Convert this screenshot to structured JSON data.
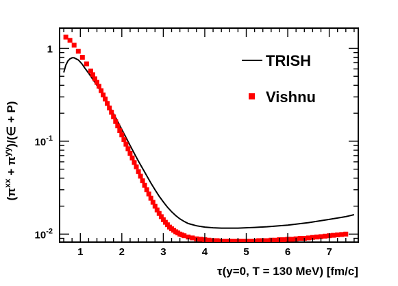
{
  "chart_data": {
    "type": "line",
    "title": "",
    "xlabel": "τ(y=0, T = 130 MeV) [fm/c]",
    "ylabel": "(π^{xx} + π^{yy})/(∈ + P)",
    "ylabel_parts": {
      "open": "(π",
      "sup1": "xx",
      "mid": " + π",
      "sup2": "yy",
      "close": ")/(∈ + P)"
    },
    "xlim": [
      0.5,
      7.7
    ],
    "ylim": [
      0.0082,
      1.65
    ],
    "yscale": "log",
    "grid": false,
    "legend_position": "top-right",
    "x_ticks": [
      {
        "value": 1,
        "label": "1"
      },
      {
        "value": 2,
        "label": "2"
      },
      {
        "value": 3,
        "label": "3"
      },
      {
        "value": 4,
        "label": "4"
      },
      {
        "value": 5,
        "label": "5"
      },
      {
        "value": 6,
        "label": "6"
      },
      {
        "value": 7,
        "label": "7"
      }
    ],
    "y_ticks": [
      {
        "value": 1,
        "base": "1",
        "exp": ""
      },
      {
        "value": 0.1,
        "base": "10",
        "exp": "-1"
      },
      {
        "value": 0.01,
        "base": "10",
        "exp": "-2"
      }
    ],
    "series": [
      {
        "name": "TRISH",
        "style": "line",
        "color": "#000000",
        "x": [
          0.6,
          0.65,
          0.7,
          0.75,
          0.8,
          0.85,
          0.9,
          0.95,
          1.0,
          1.05,
          1.1,
          1.2,
          1.3,
          1.4,
          1.5,
          1.6,
          1.7,
          1.8,
          1.9,
          2.0,
          2.1,
          2.2,
          2.3,
          2.4,
          2.5,
          2.6,
          2.7,
          2.8,
          2.9,
          3.0,
          3.1,
          3.2,
          3.3,
          3.4,
          3.5,
          3.6,
          3.8,
          4.0,
          4.2,
          4.4,
          4.6,
          4.8,
          5.0,
          5.2,
          5.5,
          6.0,
          6.5,
          7.0,
          7.4,
          7.6
        ],
        "y": [
          0.55,
          0.66,
          0.73,
          0.77,
          0.79,
          0.79,
          0.77,
          0.75,
          0.71,
          0.67,
          0.62,
          0.54,
          0.465,
          0.4,
          0.34,
          0.285,
          0.238,
          0.198,
          0.163,
          0.134,
          0.11,
          0.09,
          0.074,
          0.061,
          0.051,
          0.0425,
          0.0355,
          0.03,
          0.0256,
          0.0222,
          0.0195,
          0.0174,
          0.0158,
          0.0146,
          0.0137,
          0.013,
          0.0123,
          0.0119,
          0.0117,
          0.0116,
          0.0116,
          0.0116,
          0.0117,
          0.0118,
          0.012,
          0.0125,
          0.0133,
          0.0144,
          0.0154,
          0.0162
        ]
      },
      {
        "name": "Vishnu",
        "style": "markers",
        "color": "#ff0000",
        "x": [
          0.65,
          0.75,
          0.85,
          0.95,
          1.05,
          1.15,
          1.25,
          1.3,
          1.35,
          1.4,
          1.45,
          1.5,
          1.55,
          1.6,
          1.65,
          1.7,
          1.75,
          1.8,
          1.85,
          1.9,
          1.95,
          2.0,
          2.05,
          2.1,
          2.15,
          2.2,
          2.25,
          2.3,
          2.35,
          2.4,
          2.45,
          2.5,
          2.55,
          2.6,
          2.65,
          2.7,
          2.75,
          2.8,
          2.85,
          2.9,
          2.95,
          3.0,
          3.05,
          3.1,
          3.15,
          3.2,
          3.25,
          3.3,
          3.35,
          3.4,
          3.45,
          3.5,
          3.6,
          3.7,
          3.8,
          3.9,
          4.0,
          4.1,
          4.2,
          4.3,
          4.4,
          4.5,
          4.6,
          4.7,
          4.8,
          4.9,
          5.0,
          5.1,
          5.2,
          5.3,
          5.4,
          5.5,
          5.6,
          5.7,
          5.8,
          5.9,
          6.0,
          6.1,
          6.2,
          6.3,
          6.4,
          6.5,
          6.6,
          6.7,
          6.8,
          6.9,
          7.0,
          7.1,
          7.2,
          7.3,
          7.4
        ],
        "y": [
          1.32,
          1.22,
          1.08,
          0.93,
          0.8,
          0.68,
          0.57,
          0.52,
          0.47,
          0.43,
          0.39,
          0.35,
          0.315,
          0.285,
          0.255,
          0.228,
          0.205,
          0.183,
          0.163,
          0.146,
          0.13,
          0.117,
          0.104,
          0.093,
          0.083,
          0.074,
          0.066,
          0.059,
          0.053,
          0.047,
          0.042,
          0.0375,
          0.0335,
          0.03,
          0.027,
          0.0243,
          0.022,
          0.02,
          0.0182,
          0.0167,
          0.0154,
          0.0143,
          0.0134,
          0.0126,
          0.0119,
          0.0114,
          0.011,
          0.0106,
          0.0103,
          0.01,
          0.0098,
          0.0096,
          0.0093,
          0.0091,
          0.0089,
          0.0088,
          0.0087,
          0.0086,
          0.0085,
          0.0085,
          0.0084,
          0.0084,
          0.0084,
          0.0084,
          0.0084,
          0.0084,
          0.0084,
          0.0084,
          0.0084,
          0.0085,
          0.0085,
          0.0085,
          0.0086,
          0.0086,
          0.0087,
          0.0087,
          0.0088,
          0.0088,
          0.0089,
          0.009,
          0.009,
          0.0091,
          0.0092,
          0.0093,
          0.0094,
          0.0095,
          0.0096,
          0.0097,
          0.0098,
          0.0099,
          0.01
        ]
      }
    ]
  }
}
